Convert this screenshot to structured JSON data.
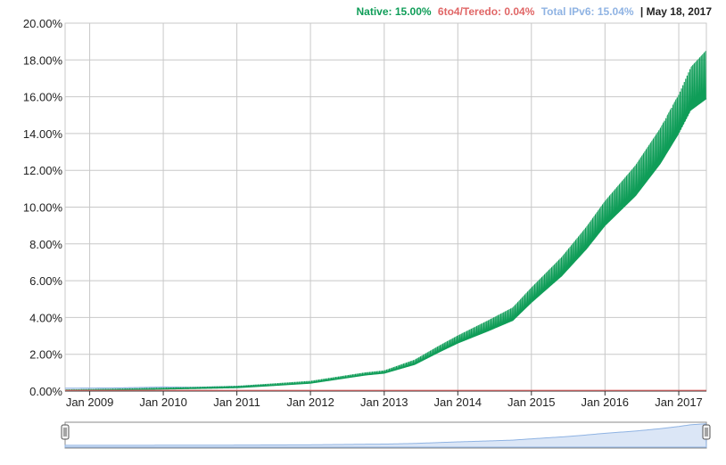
{
  "legend": {
    "native_label": "Native: 15.00%",
    "teredo_label": "6to4/Teredo: 0.04%",
    "total_label": "Total IPv6: 15.04%",
    "date_label": "| May 18, 2017"
  },
  "colors": {
    "native": "#0f9d58",
    "teredo": "#e06666",
    "total": "#8fb3e3",
    "grid": "#c8c8c8",
    "axis": "#333333"
  },
  "chart_data": {
    "type": "area",
    "x_tick_labels": [
      "Jan 2009",
      "Jan 2010",
      "Jan 2011",
      "Jan 2012",
      "Jan 2013",
      "Jan 2014",
      "Jan 2015",
      "Jan 2016",
      "Jan 2017"
    ],
    "y_tick_labels": [
      "0.00%",
      "2.00%",
      "4.00%",
      "6.00%",
      "8.00%",
      "10.00%",
      "12.00%",
      "14.00%",
      "16.00%",
      "18.00%",
      "20.00%"
    ],
    "x_range": [
      "2008-09-01",
      "2017-05-18"
    ],
    "ylim": [
      0,
      20
    ],
    "grid": true,
    "legend_position": "top-right",
    "series": [
      {
        "name": "Native",
        "points": [
          [
            "2008-09-01",
            0.05
          ],
          [
            "2009-06-01",
            0.08
          ],
          [
            "2010-01-01",
            0.12
          ],
          [
            "2010-06-01",
            0.15
          ],
          [
            "2011-01-01",
            0.2
          ],
          [
            "2011-06-01",
            0.3
          ],
          [
            "2012-01-01",
            0.45
          ],
          [
            "2012-06-01",
            0.7
          ],
          [
            "2012-10-01",
            0.9
          ],
          [
            "2013-01-01",
            1.0
          ],
          [
            "2013-06-01",
            1.5
          ],
          [
            "2013-10-01",
            2.2
          ],
          [
            "2014-01-01",
            2.7
          ],
          [
            "2014-06-01",
            3.4
          ],
          [
            "2014-10-01",
            4.0
          ],
          [
            "2015-01-01",
            5.0
          ],
          [
            "2015-06-01",
            6.5
          ],
          [
            "2015-10-01",
            8.0
          ],
          [
            "2016-01-01",
            9.3
          ],
          [
            "2016-06-01",
            11.0
          ],
          [
            "2016-10-01",
            12.8
          ],
          [
            "2017-01-01",
            14.5
          ],
          [
            "2017-03-01",
            15.8
          ],
          [
            "2017-05-18",
            16.5
          ]
        ],
        "weekly_amplitude": [
          [
            "2008-09-01",
            0.02
          ],
          [
            "2013-01-01",
            0.1
          ],
          [
            "2014-01-01",
            0.3
          ],
          [
            "2015-01-01",
            0.6
          ],
          [
            "2016-01-01",
            1.0
          ],
          [
            "2017-01-01",
            1.6
          ],
          [
            "2017-05-18",
            2.0
          ]
        ]
      },
      {
        "name": "6to4/Teredo",
        "points": [
          [
            "2008-09-01",
            0.04
          ],
          [
            "2017-05-18",
            0.04
          ]
        ]
      },
      {
        "name": "Total IPv6",
        "points": [
          [
            "2008-09-01",
            0.15
          ],
          [
            "2009-06-01",
            0.17
          ],
          [
            "2010-01-01",
            0.22
          ],
          [
            "2010-06-01",
            0.2
          ],
          [
            "2011-01-01",
            0.25
          ],
          [
            "2011-06-01",
            0.32
          ]
        ]
      }
    ]
  }
}
